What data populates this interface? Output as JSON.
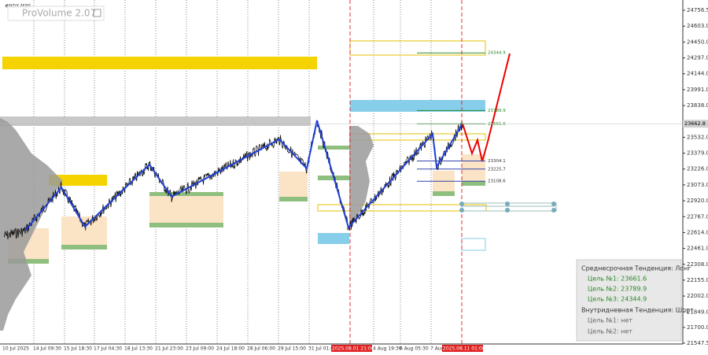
{
  "chart_data": {
    "type": "line",
    "title": "#NDX,M30",
    "indicator": "ProVolume 2.07",
    "ylim": [
      21540,
      24855
    ],
    "yticks": [
      24756.5,
      {
        "value": 24603,
        "label": "24603.0"
      },
      {
        "value": 24450,
        "label": "24450.0"
      },
      {
        "value": 24297,
        "label": "24297.0"
      },
      {
        "value": 24144,
        "label": "24144.0"
      },
      {
        "value": 23991,
        "label": "23991.0"
      },
      {
        "value": 23838,
        "label": "23838.0"
      },
      {
        "value": 23532,
        "label": "23532.0"
      },
      {
        "value": 23379,
        "label": "23379.0"
      },
      {
        "value": 23226,
        "label": "23226.0"
      },
      {
        "value": 23073,
        "label": "23073.0"
      },
      {
        "value": 22920,
        "label": "22920.0"
      },
      {
        "value": 22767,
        "label": "22767.0"
      },
      {
        "value": 22614,
        "label": "22614.0"
      },
      {
        "value": 22461,
        "label": "22461.0"
      },
      {
        "value": 22308,
        "label": "22308.0"
      },
      {
        "value": 22155,
        "label": "22155.0"
      },
      {
        "value": 22002,
        "label": "22002.0"
      },
      {
        "value": 21849,
        "label": "21849.0"
      },
      {
        "value": 21700,
        "label": "21700.0"
      },
      21547.5
    ],
    "current_price": 23662.8,
    "categories": [
      "10 Jul 2025",
      "14 Jul 09:30",
      "15 Jul 18:30",
      "17 Jul 04:30",
      "18 Jul 13:30",
      "21 Jul 23:00",
      "23 Jul 09:00",
      "24 Jul 18:00",
      "28 Jul 06:00",
      "29 Jul 15:00",
      "31 Jul 01:00",
      "2025.08.01 21:00",
      "4 Aug 19:30",
      "6 Aug 05:30",
      "7 Aug",
      "2025.08.11 01:00"
    ],
    "levels": [
      24344.9,
      23789.9,
      23661.6,
      23304.1,
      23225.7,
      23108.6
    ],
    "panel": {
      "medium_term": "Среднесрочная Тенденция: Лонг",
      "medium_targets": [
        "Цель №1: 23661.6",
        "Цель №2: 23789.9",
        "Цель №3: 24344.9"
      ],
      "intraday": "Внутридневная Тенденция: Шорт",
      "intraday_targets": [
        "Цель №1: нет",
        "Цель №2: нет"
      ]
    }
  }
}
